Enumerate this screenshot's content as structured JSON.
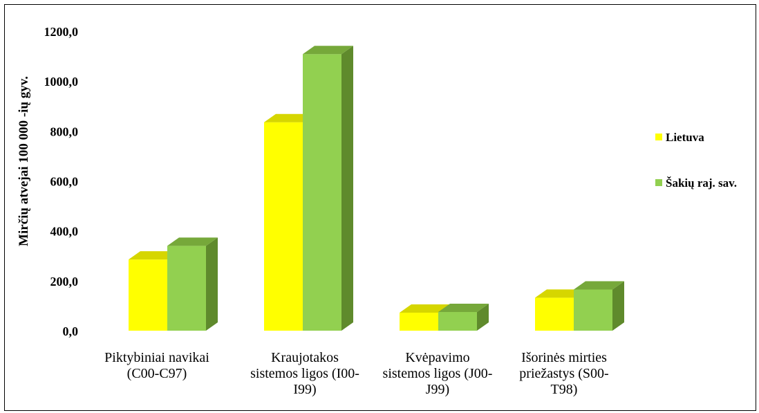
{
  "chart_data": {
    "type": "bar",
    "title": "",
    "xlabel": "",
    "ylabel": "Mirčių atvejai 100 000 -ių gyv.",
    "ylim": [
      0,
      1200
    ],
    "yticks": [
      "0,0",
      "200,0",
      "400,0",
      "600,0",
      "800,0",
      "1000,0",
      "1200,0"
    ],
    "categories": [
      [
        "Piktybiniai navikai",
        "(C00-C97)"
      ],
      [
        "Kraujotakos",
        "sistemos ligos (I00-",
        "I99)"
      ],
      [
        "Kvėpavimo",
        "sistemos ligos (J00-",
        "J99)"
      ],
      [
        "Išorinės mirties",
        "priežastys (S00-",
        "T98)"
      ]
    ],
    "series": [
      {
        "name": "Lietuva",
        "values": [
          285,
          835,
          72,
          132
        ],
        "color": "#ffff00",
        "top_color": "#d6d600",
        "side_color": "#c9c900"
      },
      {
        "name": "Šakių raj. sav.",
        "values": [
          340,
          1108,
          75,
          165
        ],
        "color": "#92d050",
        "top_color": "#76a83a",
        "side_color": "#5f8a2c"
      }
    ],
    "grid": false,
    "legend_position": "right"
  }
}
